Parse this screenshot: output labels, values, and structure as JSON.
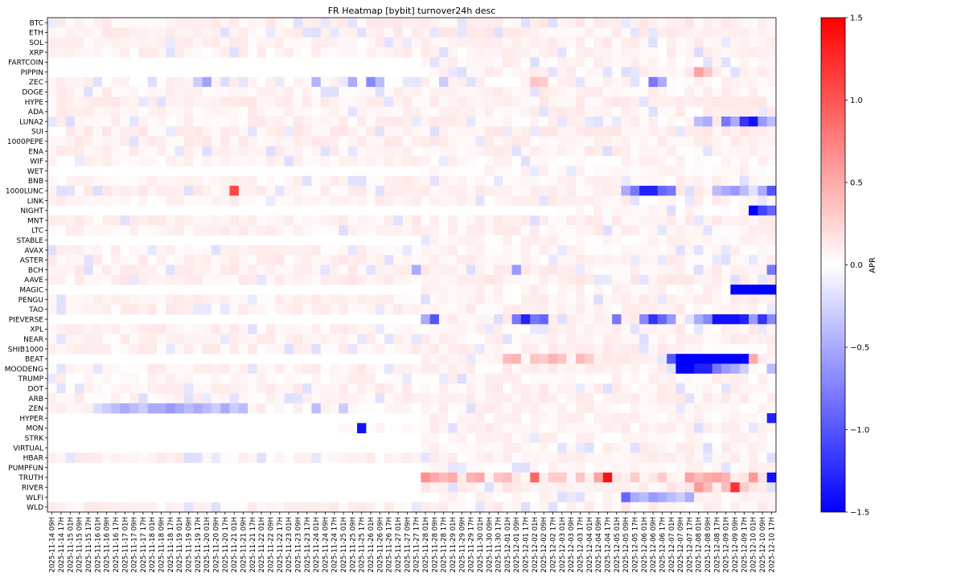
{
  "chart_data": {
    "type": "heatmap",
    "title": "FR Heatmap [bybit] turnover24h desc",
    "xlabel": "",
    "ylabel": "",
    "colorbar_label": "APR",
    "colorscale": "bwr",
    "colors": {
      "low": "#0000ff",
      "mid": "#ffffff",
      "high": "#ff0000"
    },
    "vlim": [
      -1.5,
      1.5
    ],
    "colorbar_ticks": [
      "1.5",
      "1.0",
      "0.5",
      "0.0",
      "−0.5",
      "−1.0",
      "−1.5"
    ],
    "rows": [
      "BTC",
      "ETH",
      "SOL",
      "XRP",
      "FARTCOIN",
      "PIPPIN",
      "ZEC",
      "DOGE",
      "HYPE",
      "ADA",
      "LUNA2",
      "SUI",
      "1000PEPE",
      "ENA",
      "WIF",
      "WET",
      "BNB",
      "1000LUNC",
      "LINK",
      "NIGHT",
      "MNT",
      "LTC",
      "STABLE",
      "AVAX",
      "ASTER",
      "BCH",
      "AAVE",
      "MAGIC",
      "PENGU",
      "TAO",
      "PIEVERSE",
      "XPL",
      "NEAR",
      "SHIB1000",
      "BEAT",
      "MOODENG",
      "TRUMP",
      "DOT",
      "ARB",
      "ZEN",
      "HYPER",
      "MON",
      "STRK",
      "VIRTUAL",
      "HBAR",
      "PUMPFUN",
      "TRUTH",
      "RIVER",
      "WLFI",
      "WLD"
    ],
    "x_start": "2025-11-14 09H",
    "x_end": "2025-12-10 17H",
    "x_step_hours": 8,
    "x_tick_labels": [
      "2025-11-14 09H",
      "2025-11-14 17H",
      "2025-11-15 01H",
      "2025-11-15 09H",
      "2025-11-15 17H",
      "2025-11-16 01H",
      "2025-11-16 09H",
      "2025-11-16 17H",
      "2025-11-17 01H",
      "2025-11-17 09H",
      "2025-11-17 17H",
      "2025-11-18 01H",
      "2025-11-18 09H",
      "2025-11-18 17H",
      "2025-11-19 01H",
      "2025-11-19 09H",
      "2025-11-19 17H",
      "2025-11-20 01H",
      "2025-11-20 09H",
      "2025-11-20 17H",
      "2025-11-21 01H",
      "2025-11-21 09H",
      "2025-11-21 17H",
      "2025-11-22 01H",
      "2025-11-22 09H",
      "2025-11-22 17H",
      "2025-11-23 01H",
      "2025-11-23 09H",
      "2025-11-23 17H",
      "2025-11-24 01H",
      "2025-11-24 09H",
      "2025-11-24 17H",
      "2025-11-25 01H",
      "2025-11-25 09H",
      "2025-11-25 17H",
      "2025-11-26 01H",
      "2025-11-26 09H",
      "2025-11-26 17H",
      "2025-11-27 01H",
      "2025-11-27 09H",
      "2025-11-27 17H",
      "2025-11-28 01H",
      "2025-11-28 09H",
      "2025-11-28 17H",
      "2025-11-29 01H",
      "2025-11-29 09H",
      "2025-11-29 17H",
      "2025-11-30 01H",
      "2025-11-30 09H",
      "2025-11-30 17H",
      "2025-12-01 01H",
      "2025-12-01 09H",
      "2025-12-01 17H",
      "2025-12-02 01H",
      "2025-12-02 09H",
      "2025-12-02 17H",
      "2025-12-03 01H",
      "2025-12-03 09H",
      "2025-12-03 17H",
      "2025-12-04 01H",
      "2025-12-04 09H",
      "2025-12-04 17H",
      "2025-12-05 01H",
      "2025-12-05 09H",
      "2025-12-05 17H",
      "2025-12-06 01H",
      "2025-12-06 09H",
      "2025-12-06 17H",
      "2025-12-07 01H",
      "2025-12-07 09H",
      "2025-12-07 17H",
      "2025-12-08 01H",
      "2025-12-08 09H",
      "2025-12-08 17H",
      "2025-12-09 01H",
      "2025-12-09 09H",
      "2025-12-09 17H",
      "2025-12-10 01H",
      "2025-12-10 09H",
      "2025-12-10 17H"
    ],
    "grid": false,
    "background_pattern": {
      "description_values": "approximate per-row baseline APR; rows start listing at given index",
      "rows": {
        "BTC": {
          "base": 0.08,
          "start": 0
        },
        "ETH": {
          "base": 0.09,
          "start": 0
        },
        "SOL": {
          "base": 0.07,
          "start": 0
        },
        "XRP": {
          "base": 0.06,
          "start": 0
        },
        "FARTCOIN": {
          "base": 0.06,
          "start": 41
        },
        "PIPPIN": {
          "base": 0.06,
          "start": 41
        },
        "ZEC": {
          "base": 0.05,
          "start": 0
        },
        "DOGE": {
          "base": 0.07,
          "start": 0
        },
        "HYPE": {
          "base": 0.08,
          "start": 0
        },
        "ADA": {
          "base": 0.07,
          "start": 0
        },
        "LUNA2": {
          "base": 0.07,
          "start": 0
        },
        "SUI": {
          "base": 0.09,
          "start": 2
        },
        "1000PEPE": {
          "base": 0.08,
          "start": 0
        },
        "ENA": {
          "base": 0.07,
          "start": 0
        },
        "WIF": {
          "base": 0.05,
          "start": 0
        },
        "WET": {
          "base": 0.04,
          "start": 41
        },
        "BNB": {
          "base": 0.06,
          "start": 0
        },
        "1000LUNC": {
          "base": 0.08,
          "start": 0
        },
        "LINK": {
          "base": 0.06,
          "start": 0
        },
        "NIGHT": {
          "base": 0.03,
          "start": 56
        },
        "MNT": {
          "base": 0.08,
          "start": 0
        },
        "LTC": {
          "base": 0.07,
          "start": 0
        },
        "STABLE": {
          "base": 0.04,
          "start": 41
        },
        "AVAX": {
          "base": 0.06,
          "start": 0
        },
        "ASTER": {
          "base": 0.07,
          "start": 0
        },
        "BCH": {
          "base": 0.08,
          "start": 0
        },
        "AAVE": {
          "base": 0.08,
          "start": 0
        },
        "MAGIC": {
          "base": 0.05,
          "start": 41
        },
        "PENGU": {
          "base": 0.07,
          "start": 0
        },
        "TAO": {
          "base": 0.07,
          "start": 0
        },
        "PIEVERSE": {
          "base": 0.06,
          "start": 41
        },
        "XPL": {
          "base": 0.07,
          "start": 0
        },
        "NEAR": {
          "base": 0.07,
          "start": 0
        },
        "SHIB1000": {
          "base": 0.07,
          "start": 0
        },
        "BEAT": {
          "base": 0.08,
          "start": 41
        },
        "MOODENG": {
          "base": 0.07,
          "start": 0
        },
        "TRUMP": {
          "base": 0.05,
          "start": 0
        },
        "DOT": {
          "base": 0.07,
          "start": 0
        },
        "ARB": {
          "base": 0.07,
          "start": 0
        },
        "ZEN": {
          "base": 0.06,
          "start": 0
        },
        "HYPER": {
          "base": 0.05,
          "start": 41
        },
        "MON": {
          "base": 0.07,
          "start": 32
        },
        "STRK": {
          "base": 0.05,
          "start": 41
        },
        "VIRTUAL": {
          "base": 0.06,
          "start": 41
        },
        "HBAR": {
          "base": 0.07,
          "start": 0
        },
        "PUMPFUN": {
          "base": 0.05,
          "start": 41
        },
        "TRUTH": {
          "base": 0.1,
          "start": 41
        },
        "RIVER": {
          "base": 0.1,
          "start": 41
        },
        "WLFI": {
          "base": 0.05,
          "start": 43
        },
        "WLD": {
          "base": 0.07,
          "start": 0
        }
      }
    },
    "notable_cells": [
      {
        "row": "PIPPIN",
        "cols": [
          71,
          72
        ],
        "values": [
          0.55,
          0.35
        ]
      },
      {
        "row": "ZEC",
        "cols": [
          11,
          16,
          17,
          19,
          29,
          33,
          35,
          36,
          43,
          53,
          54,
          66,
          67
        ],
        "values": [
          -0.2,
          -0.3,
          -0.55,
          -0.2,
          -0.45,
          -0.5,
          -0.7,
          -0.4,
          -0.3,
          0.35,
          0.3,
          -0.8,
          -0.5
        ]
      },
      {
        "row": "LUNA2",
        "cols": [
          71,
          72,
          74,
          75,
          76,
          77,
          78,
          79
        ],
        "values": [
          -0.4,
          -0.5,
          -0.8,
          -0.5,
          -1.2,
          -1.4,
          -0.6,
          -0.4
        ]
      },
      {
        "row": "1000LUNC",
        "cols": [
          20,
          63,
          64,
          65,
          66,
          67,
          68,
          73,
          74,
          75,
          76,
          78,
          79
        ],
        "values": [
          1.1,
          -0.5,
          -0.8,
          -1.3,
          -1.3,
          -0.9,
          -0.8,
          -0.4,
          -0.5,
          -0.6,
          -0.4,
          -0.5,
          -1.0
        ]
      },
      {
        "row": "NIGHT",
        "cols": [
          77,
          78,
          79
        ],
        "values": [
          -1.5,
          -1.1,
          -0.9
        ]
      },
      {
        "row": "BCH",
        "cols": [
          40,
          51,
          79
        ],
        "values": [
          -0.5,
          -0.6,
          -0.8
        ]
      },
      {
        "row": "MAGIC",
        "cols": [
          75,
          76,
          77,
          78,
          79
        ],
        "values": [
          -1.5,
          -1.5,
          -1.5,
          -1.5,
          -1.5
        ]
      },
      {
        "row": "PIEVERSE",
        "cols": [
          41,
          42,
          51,
          52,
          53,
          54,
          62,
          65,
          66,
          67,
          68,
          71,
          72,
          73,
          74,
          75,
          76,
          77,
          78,
          79
        ],
        "values": [
          -0.5,
          -1.0,
          -0.8,
          -1.3,
          -0.8,
          -0.9,
          -0.8,
          -0.7,
          -1.2,
          -0.9,
          -0.6,
          -0.5,
          -0.7,
          -1.4,
          -1.4,
          -1.4,
          -1.3,
          -0.6,
          -1.2,
          -0.7
        ]
      },
      {
        "row": "BEAT",
        "cols": [
          50,
          51,
          53,
          54,
          55,
          56,
          58,
          59,
          68,
          69,
          70,
          71,
          72,
          73,
          74,
          75,
          76,
          77
        ],
        "values": [
          0.4,
          0.45,
          0.35,
          0.3,
          0.45,
          0.35,
          0.4,
          0.3,
          -1.0,
          -1.5,
          -1.5,
          -1.5,
          -1.5,
          -1.5,
          -1.5,
          -1.5,
          -1.5,
          0.5
        ]
      },
      {
        "row": "MOODENG",
        "cols": [
          69,
          70,
          71,
          72,
          73,
          74,
          75,
          76,
          79
        ],
        "values": [
          -1.5,
          -1.5,
          -1.3,
          -1.3,
          -0.8,
          -0.6,
          -0.5,
          -0.3,
          -0.4
        ]
      },
      {
        "row": "ZEN",
        "cols": [
          5,
          6,
          7,
          8,
          9,
          10,
          11,
          12,
          13,
          14,
          15,
          16,
          17,
          18,
          19,
          20,
          21,
          29,
          32
        ],
        "values": [
          -0.2,
          -0.3,
          -0.4,
          -0.5,
          -0.4,
          -0.3,
          -0.5,
          -0.5,
          -0.6,
          -0.5,
          -0.4,
          -0.5,
          -0.4,
          -0.3,
          -0.5,
          -0.3,
          -0.4,
          -0.4,
          -0.3
        ]
      },
      {
        "row": "HYPER",
        "cols": [
          79
        ],
        "values": [
          -1.3
        ]
      },
      {
        "row": "MON",
        "cols": [
          34
        ],
        "values": [
          -1.4
        ]
      },
      {
        "row": "TRUTH",
        "cols": [
          41,
          42,
          43,
          44,
          46,
          47,
          49,
          50,
          53,
          55,
          56,
          58,
          60,
          61,
          64,
          67,
          70,
          71,
          72,
          73,
          74,
          77,
          79
        ],
        "values": [
          0.65,
          0.5,
          0.4,
          0.5,
          0.45,
          0.5,
          0.35,
          0.4,
          0.9,
          0.3,
          0.3,
          0.35,
          0.55,
          1.4,
          0.3,
          0.3,
          0.55,
          0.4,
          0.5,
          0.55,
          0.45,
          0.6,
          -1.4
        ]
      },
      {
        "row": "RIVER",
        "cols": [
          71,
          72,
          74,
          75,
          76
        ],
        "values": [
          0.6,
          0.4,
          0.4,
          1.2,
          0.3
        ]
      },
      {
        "row": "WLFI",
        "cols": [
          63,
          64,
          65,
          66,
          67,
          68,
          69,
          70
        ],
        "values": [
          -0.9,
          -0.5,
          -0.4,
          -0.6,
          -0.5,
          -0.4,
          -0.3,
          -0.5
        ]
      }
    ]
  }
}
